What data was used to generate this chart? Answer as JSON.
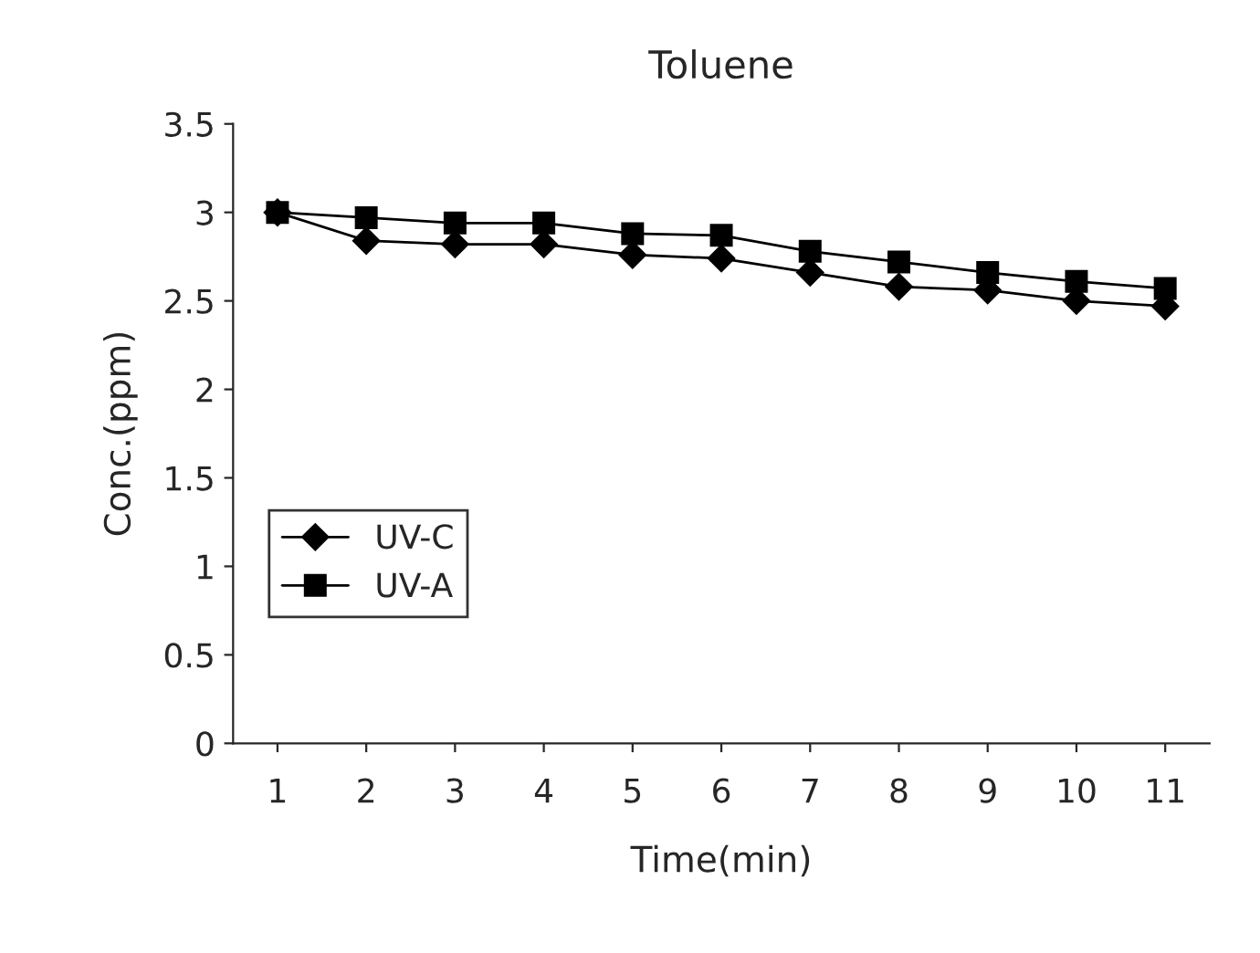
{
  "chart_data": {
    "type": "line",
    "title": "Toluene",
    "xlabel": "Time(min)",
    "ylabel": "Conc.(ppm)",
    "categories": [
      "1",
      "2",
      "3",
      "4",
      "5",
      "6",
      "7",
      "8",
      "9",
      "10",
      "11"
    ],
    "series": [
      {
        "name": "UV-C",
        "color": "#000000",
        "marker": "diamond",
        "values": [
          3.0,
          2.84,
          2.82,
          2.82,
          2.76,
          2.74,
          2.66,
          2.58,
          2.56,
          2.5,
          2.47
        ]
      },
      {
        "name": "UV-A",
        "color": "#000000",
        "marker": "square",
        "values": [
          3.0,
          2.97,
          2.94,
          2.94,
          2.88,
          2.87,
          2.78,
          2.72,
          2.66,
          2.61,
          2.57
        ]
      }
    ],
    "ylim": [
      0,
      3.5
    ],
    "yticks": [
      0,
      0.5,
      1,
      1.5,
      2,
      2.5,
      3,
      3.5
    ],
    "grid": false,
    "legend": "left",
    "line_style": "solid"
  }
}
